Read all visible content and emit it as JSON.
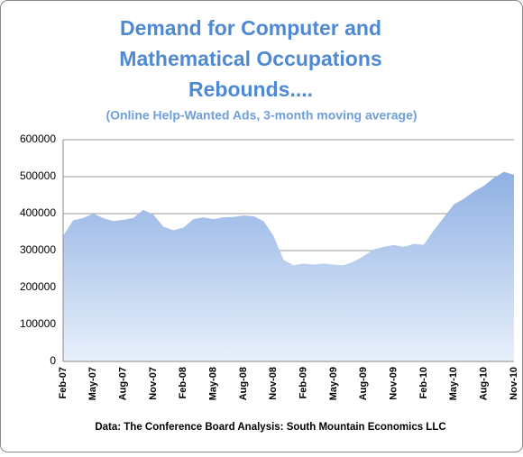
{
  "chart_data": {
    "type": "area",
    "title": [
      "Demand for Computer and",
      "Mathematical Occupations",
      "Rebounds...."
    ],
    "subtitle": "(Online Help-Wanted Ads, 3-month moving average)",
    "source": "Data: The Conference Board  Analysis: South Mountain Economics LLC",
    "categories": [
      "Feb-07",
      null,
      null,
      "May-07",
      null,
      null,
      "Aug-07",
      null,
      null,
      "Nov-07",
      null,
      null,
      "Feb-08",
      null,
      null,
      "May-08",
      null,
      null,
      "Aug-08",
      null,
      null,
      "Nov-08",
      null,
      null,
      "Feb-09",
      null,
      null,
      "May-09",
      null,
      null,
      "Aug-09",
      null,
      null,
      "Nov-09",
      null,
      null,
      "Feb-10",
      null,
      null,
      "May-10",
      null,
      null,
      "Aug-10",
      null,
      null,
      "Nov-10"
    ],
    "values": [
      340000,
      382000,
      388000,
      400000,
      388000,
      380000,
      383000,
      388000,
      410000,
      398000,
      365000,
      355000,
      362000,
      385000,
      390000,
      385000,
      390000,
      391000,
      395000,
      393000,
      380000,
      340000,
      275000,
      260000,
      265000,
      262000,
      265000,
      262000,
      260000,
      270000,
      285000,
      303000,
      310000,
      315000,
      310000,
      318000,
      316000,
      355000,
      390000,
      425000,
      440000,
      460000,
      475000,
      497000,
      513000,
      505000
    ],
    "color": "#8fb0e3",
    "ylim": [
      0,
      600000
    ],
    "yticks": [
      0,
      100000,
      200000,
      300000,
      400000,
      500000,
      600000
    ],
    "grid": true
  }
}
